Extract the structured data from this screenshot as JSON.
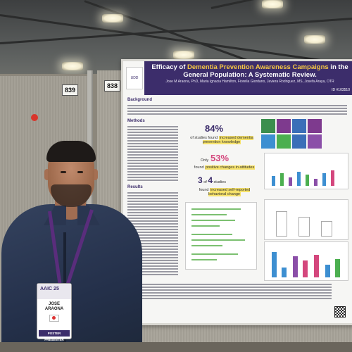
{
  "booth": {
    "left_number": "839",
    "right_number": "838"
  },
  "poster": {
    "title_prefix": "Efficacy of ",
    "title_highlight": "Dementia Prevention Awareness Campaigns",
    "title_suffix": " in the General Population: A Systematic Review.",
    "authors": "Jose M Araona, PhD, Maria Ignacia Hamilton, Fiorella Giordano, Javiera Rodriguez, MS, Josefa Araya, OTR",
    "poster_id": "ID #103510",
    "sections": {
      "background": "Background",
      "methods": "Methods",
      "results": "Results"
    },
    "stats": {
      "stat1_value": "84%",
      "stat1_text_a": "of studies found ",
      "stat1_text_b": "increased dementia prevention knowledge",
      "stat2_prefix": "Only ",
      "stat2_value": "53%",
      "stat2_text_a": "found ",
      "stat2_text_b": "positive changes in attitudes",
      "stat3_value": "3",
      "stat3_of": " of ",
      "stat3_total": "4",
      "stat3_suffix": " studies",
      "stat3_text_a": "found ",
      "stat3_text_b": "increased self-reported behavioral change"
    },
    "colors": {
      "header": "#3c2d6b",
      "highlight": "#f6c744",
      "accent_purple": "#8b4fa8",
      "accent_blue": "#3d8fd1",
      "accent_green": "#4caf50"
    }
  },
  "badge": {
    "event": "AAIC 25",
    "name_first": "JOSE",
    "name_last": "ARAONA",
    "role": "POSTER PRESENTER"
  }
}
